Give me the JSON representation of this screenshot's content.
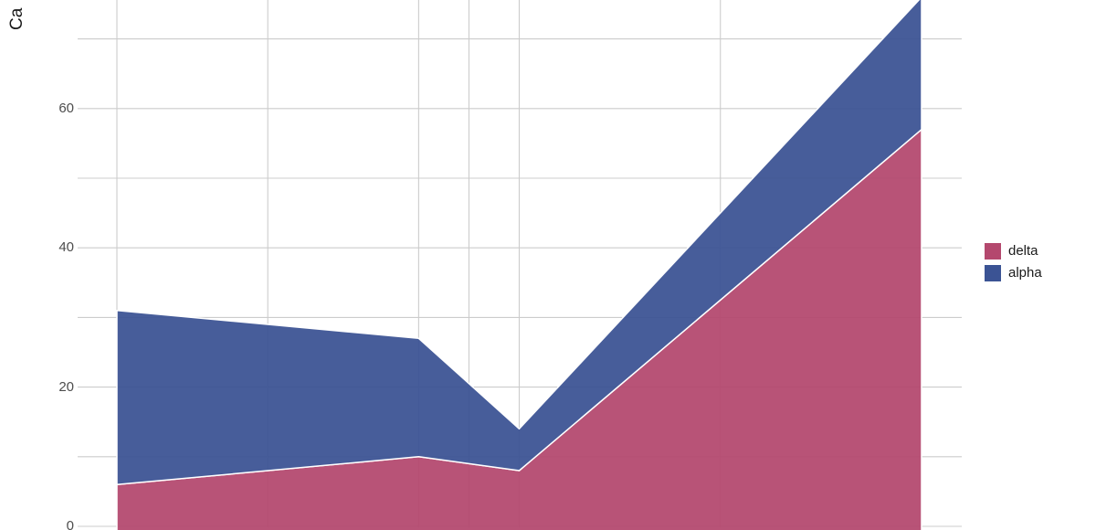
{
  "chart": {
    "type": "area",
    "stacked": true,
    "x_scale": "log2",
    "x": [
      1,
      64,
      256,
      65536
    ],
    "series": [
      {
        "name": "delta",
        "color": "#B4486E",
        "values": [
          6,
          10,
          8,
          57
        ]
      },
      {
        "name": "alpha",
        "color": "#3B5394",
        "values": [
          25,
          17,
          6,
          19
        ]
      }
    ],
    "totals": [
      31,
      27,
      14,
      76
    ],
    "x_gridline_values": [
      1,
      8,
      64,
      128,
      256,
      4096
    ],
    "y_major_ticks": [
      0,
      20,
      40,
      60
    ],
    "y_minor_ticks": [
      10,
      30,
      50,
      70
    ],
    "ylabel_visible_fragment": "Ca",
    "legend_position": "right",
    "colors": {
      "grid": "#CCCCCC",
      "area_outline": "#FFFFFF",
      "tick_text": "#4D4D4D",
      "title_text": "#1A1A1A",
      "background": "#FFFFFF"
    }
  }
}
